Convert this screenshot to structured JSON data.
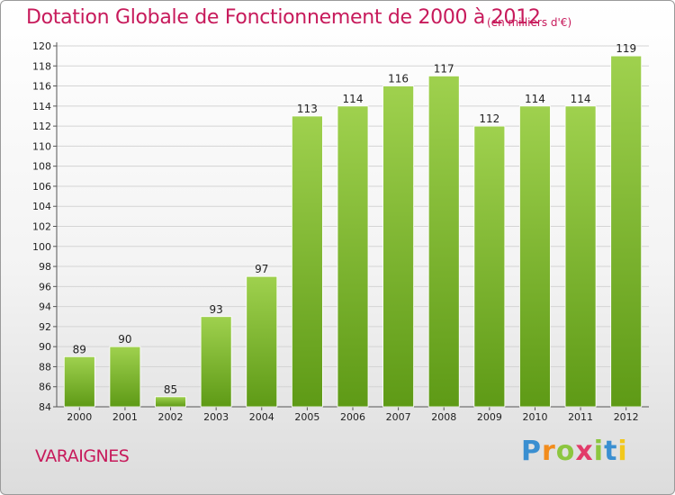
{
  "title": "Dotation Globale de Fonctionnement de 2000 à 2012",
  "unit_note": "(en milliers d'€)",
  "commune": "VARAIGNES",
  "logo": {
    "text": "Proxiti",
    "letters": [
      "P",
      "r",
      "o",
      "x",
      "i",
      "t",
      "i"
    ]
  },
  "colors": {
    "title": "#c71a5b",
    "bar_light": "#9fd14e",
    "bar_dark": "#5e9a16",
    "grid": "#d4d4d4"
  },
  "chart_data": {
    "type": "bar",
    "title": "Dotation Globale de Fonctionnement de 2000 à 2012",
    "subtitle": "(en milliers d'€)",
    "xlabel": "",
    "ylabel": "",
    "categories": [
      "2000",
      "2001",
      "2002",
      "2003",
      "2004",
      "2005",
      "2006",
      "2007",
      "2008",
      "2009",
      "2010",
      "2011",
      "2012"
    ],
    "values": [
      89,
      90,
      85,
      93,
      97,
      113,
      114,
      116,
      117,
      112,
      114,
      114,
      119
    ],
    "ylim": [
      84,
      120
    ],
    "yticks": [
      84,
      86,
      88,
      90,
      92,
      94,
      96,
      98,
      100,
      102,
      104,
      106,
      108,
      110,
      112,
      114,
      116,
      118,
      120
    ],
    "grid": true,
    "legend": "none"
  }
}
